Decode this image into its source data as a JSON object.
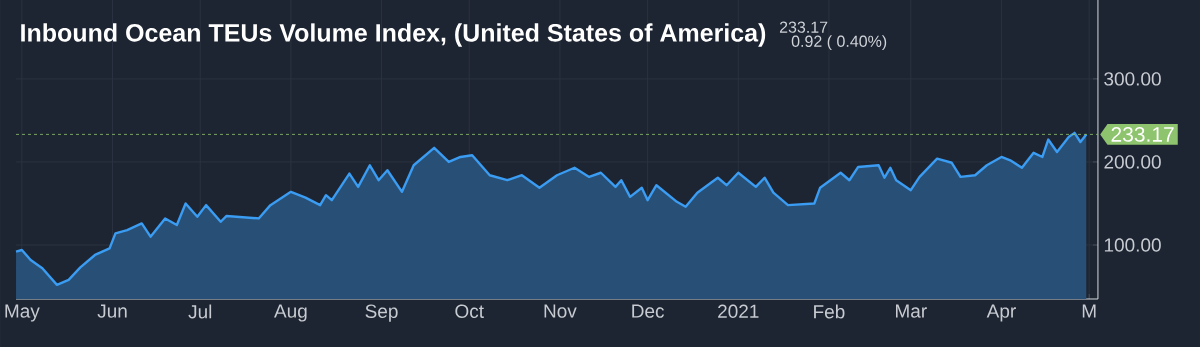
{
  "chart_data": {
    "type": "area",
    "title": "Inbound Ocean TEUs Volume Index, (United States of America)",
    "annotations": [
      "233.17",
      "0.92 ( 0.40%)"
    ],
    "x": [
      "2020-04-29",
      "2020-05-01",
      "2020-05-04",
      "2020-05-08",
      "2020-05-13",
      "2020-05-17",
      "2020-05-21",
      "2020-05-26",
      "2020-05-31",
      "2020-06-02",
      "2020-06-06",
      "2020-06-11",
      "2020-06-14",
      "2020-06-19",
      "2020-06-23",
      "2020-06-26",
      "2020-06-30",
      "2020-07-03",
      "2020-07-08",
      "2020-07-10",
      "2020-07-21",
      "2020-07-25",
      "2020-08-01",
      "2020-08-06",
      "2020-08-11",
      "2020-08-13",
      "2020-08-15",
      "2020-08-18",
      "2020-08-21",
      "2020-08-24",
      "2020-08-28",
      "2020-08-31",
      "2020-09-03",
      "2020-09-08",
      "2020-09-12",
      "2020-09-19",
      "2020-09-24",
      "2020-09-28",
      "2020-10-02",
      "2020-10-08",
      "2020-10-14",
      "2020-10-19",
      "2020-10-25",
      "2020-10-31",
      "2020-11-06",
      "2020-11-11",
      "2020-11-15",
      "2020-11-20",
      "2020-11-22",
      "2020-11-25",
      "2020-11-29",
      "2020-12-01",
      "2020-12-04",
      "2020-12-11",
      "2020-12-14",
      "2020-12-18",
      "2020-12-25",
      "2020-12-28",
      "2021-01-01",
      "2021-01-07",
      "2021-01-10",
      "2021-01-13",
      "2021-01-18",
      "2021-01-27",
      "2021-01-29",
      "2021-02-05",
      "2021-02-08",
      "2021-02-11",
      "2021-02-18",
      "2021-02-20",
      "2021-02-22",
      "2021-02-24",
      "2021-03-01",
      "2021-03-04",
      "2021-03-10",
      "2021-03-15",
      "2021-03-18",
      "2021-03-23",
      "2021-03-27",
      "2021-04-01",
      "2021-04-04",
      "2021-04-08",
      "2021-04-12",
      "2021-04-15",
      "2021-04-17",
      "2021-04-20",
      "2021-04-24",
      "2021-04-26",
      "2021-04-28",
      "2021-04-30"
    ],
    "series": [
      {
        "color": "#3a9cf2",
        "values": [
          92,
          94,
          82,
          72,
          52,
          58,
          73,
          88,
          96,
          114,
          118,
          126,
          110,
          132,
          124,
          150,
          134,
          148,
          128,
          135,
          132,
          148,
          164,
          157,
          148,
          160,
          154,
          170,
          186,
          170,
          196,
          178,
          190,
          164,
          196,
          217,
          200,
          206,
          208,
          184,
          178,
          184,
          169,
          184,
          193,
          182,
          187,
          170,
          178,
          158,
          169,
          154,
          172,
          152,
          146,
          163,
          181,
          172,
          187,
          170,
          181,
          163,
          148,
          150,
          169,
          187,
          178,
          194,
          196,
          181,
          193,
          178,
          166,
          182,
          204,
          199,
          182,
          184,
          196,
          206,
          202,
          193,
          211,
          206,
          227,
          212,
          230,
          235,
          224,
          233.17
        ]
      }
    ],
    "xlim": [
      "2020-04-29",
      "2021-05-04"
    ],
    "xticks": [
      {
        "value": "2020-05-01",
        "label": "May"
      },
      {
        "value": "2020-06-01",
        "label": "Jun"
      },
      {
        "value": "2020-07-01",
        "label": "Jul"
      },
      {
        "value": "2020-08-01",
        "label": "Aug"
      },
      {
        "value": "2020-09-01",
        "label": "Sep"
      },
      {
        "value": "2020-10-01",
        "label": "Oct"
      },
      {
        "value": "2020-11-01",
        "label": "Nov"
      },
      {
        "value": "2020-12-01",
        "label": "Dec"
      },
      {
        "value": "2021-01-01",
        "label": "2021"
      },
      {
        "value": "2021-02-01",
        "label": "Feb"
      },
      {
        "value": "2021-03-01",
        "label": "Mar"
      },
      {
        "value": "2021-04-01",
        "label": "Apr"
      },
      {
        "value": "2021-05-01",
        "label": "M"
      }
    ],
    "ylim": [
      35,
      395
    ],
    "yticks": [
      {
        "value": 100,
        "label": "100.00"
      },
      {
        "value": 200,
        "label": "200.00"
      },
      {
        "value": 300,
        "label": "300.00"
      }
    ],
    "ref_lines": [
      {
        "axis": "y",
        "value": 233.17,
        "label": "233.17",
        "color": "#8fc46e",
        "line_style": "dashed"
      }
    ],
    "grid": true
  }
}
